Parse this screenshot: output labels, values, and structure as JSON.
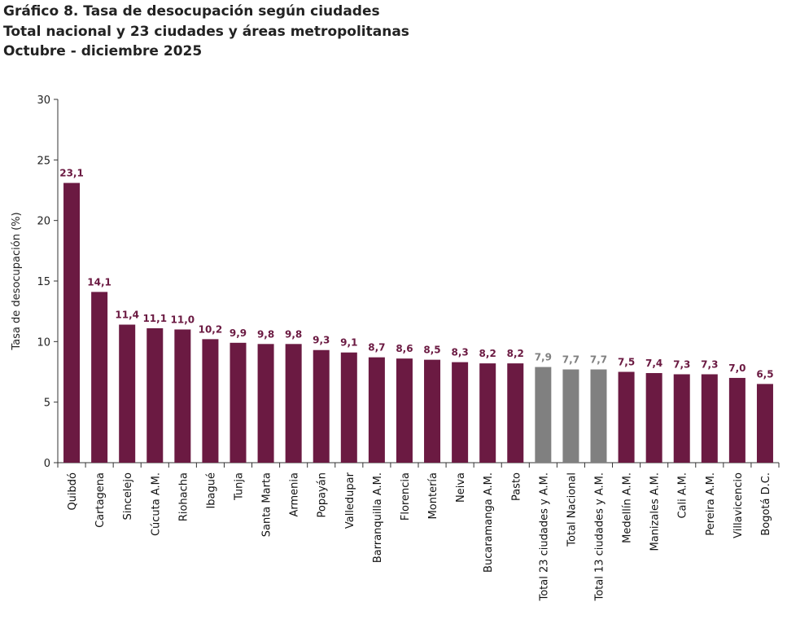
{
  "title_lines": [
    "Gráfico 8. Tasa de desocupación según ciudades",
    "Total nacional y 23 ciudades y áreas metropolitanas",
    "Octubre - diciembre 2025"
  ],
  "colors": {
    "city": "#6b1a42",
    "total": "#808080"
  },
  "chart_data": {
    "type": "bar",
    "title": "Gráfico 8. Tasa de desocupación según ciudades",
    "ylabel": "Tasa de desocupación (%)",
    "xlabel": "",
    "ylim": [
      0,
      30
    ],
    "yticks": [
      0,
      5,
      10,
      15,
      20,
      25,
      30
    ],
    "grid": false,
    "categories": [
      "Quibdó",
      "Cartagena",
      "Sincelejo",
      "Cúcuta A.M.",
      "Riohacha",
      "Ibagué",
      "Tunja",
      "Santa Marta",
      "Armenia",
      "Popayán",
      "Valledupar",
      "Barranquilla A.M.",
      "Florencia",
      "Montería",
      "Neiva",
      "Bucaramanga A.M.",
      "Pasto",
      "Total 23 ciudades y A.M.",
      "Total Nacional",
      "Total 13 ciudades y A.M.",
      "Medellín A.M.",
      "Manizales A.M.",
      "Cali A.M.",
      "Pereira A.M.",
      "Villavicencio",
      "Bogotá D.C."
    ],
    "values": [
      23.1,
      14.1,
      11.4,
      11.1,
      11.0,
      10.2,
      9.9,
      9.8,
      9.8,
      9.3,
      9.1,
      8.7,
      8.6,
      8.5,
      8.3,
      8.2,
      8.2,
      7.9,
      7.7,
      7.7,
      7.5,
      7.4,
      7.3,
      7.3,
      7.0,
      6.5
    ],
    "value_labels": [
      "23,1",
      "14,1",
      "11,4",
      "11,1",
      "11,0",
      "10,2",
      "9,9",
      "9,8",
      "9,8",
      "9,3",
      "9,1",
      "8,7",
      "8,6",
      "8,5",
      "8,3",
      "8,2",
      "8,2",
      "7,9",
      "7,7",
      "7,7",
      "7,5",
      "7,4",
      "7,3",
      "7,3",
      "7,0",
      "6,5"
    ],
    "highlight_totals": [
      false,
      false,
      false,
      false,
      false,
      false,
      false,
      false,
      false,
      false,
      false,
      false,
      false,
      false,
      false,
      false,
      false,
      true,
      true,
      true,
      false,
      false,
      false,
      false,
      false,
      false
    ]
  }
}
